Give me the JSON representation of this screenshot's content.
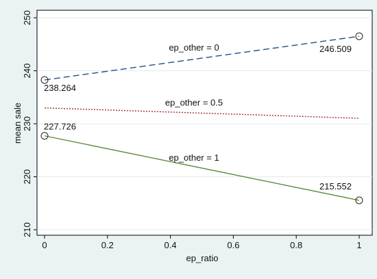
{
  "chart_data": {
    "type": "line",
    "xlabel": "ep_ratio",
    "ylabel": "mean sale",
    "xlim": [
      0,
      1
    ],
    "ylim": [
      210,
      250
    ],
    "x_ticks": [
      0,
      0.2,
      0.4,
      0.6,
      0.8,
      1
    ],
    "x_tick_labels": [
      "0",
      "0.2",
      "0.4",
      "0.6",
      "0.8",
      "1"
    ],
    "y_ticks": [
      210,
      220,
      230,
      240,
      250
    ],
    "y_tick_labels": [
      "210",
      "220",
      "230",
      "240",
      "250"
    ],
    "grid": "horizontal",
    "legend": "none",
    "background_color": "#eaf2f3",
    "plot_color": "#ffffff",
    "series": [
      {
        "name": "ep_other = 0",
        "x": [
          0,
          1
        ],
        "y": [
          238.264,
          246.509
        ],
        "color": "#1f4e8c",
        "style": "dashed",
        "markers": true,
        "point_labels": [
          "238.264",
          "246.509"
        ]
      },
      {
        "name": "ep_other = 0.5",
        "x": [
          0,
          1
        ],
        "y": [
          232.995,
          231.031
        ],
        "color": "#a32a2a",
        "style": "dotted",
        "markers": false,
        "point_labels": []
      },
      {
        "name": "ep_other = 1",
        "x": [
          0,
          1
        ],
        "y": [
          227.726,
          215.552
        ],
        "color": "#5b8a3a",
        "style": "solid",
        "markers": true,
        "point_labels": [
          "227.726",
          "215.552"
        ]
      }
    ]
  }
}
